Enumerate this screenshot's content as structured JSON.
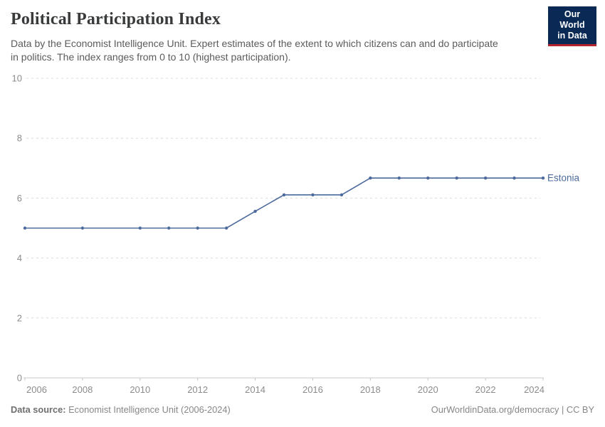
{
  "header": {
    "title": "Political Participation Index",
    "subtitle_lines": [
      "Data by the Economist Intelligence Unit. Expert estimates of the extent to which citizens can and do participate",
      "in politics. The index ranges from 0 to 10 (highest participation)."
    ],
    "logo": {
      "line1": "Our World",
      "line2": "in Data",
      "bg_color": "#0a2a55",
      "accent_color": "#b5232d"
    }
  },
  "chart_data": {
    "type": "line",
    "title": "Political Participation Index",
    "xlabel": "",
    "ylabel": "",
    "xlim": [
      2006,
      2024
    ],
    "ylim": [
      0,
      10
    ],
    "x_ticks": [
      2006,
      2008,
      2010,
      2012,
      2014,
      2016,
      2018,
      2020,
      2022,
      2024
    ],
    "y_ticks": [
      0,
      2,
      4,
      6,
      8,
      10
    ],
    "grid": "horizontal-dashed",
    "legend_position": "end-of-line",
    "series": [
      {
        "name": "Estonia",
        "color": "#4c6a9c",
        "points": [
          {
            "year": 2006,
            "value": 5.0
          },
          {
            "year": 2008,
            "value": 5.0
          },
          {
            "year": 2010,
            "value": 5.0
          },
          {
            "year": 2011,
            "value": 5.0
          },
          {
            "year": 2012,
            "value": 5.0
          },
          {
            "year": 2013,
            "value": 5.0
          },
          {
            "year": 2014,
            "value": 5.56
          },
          {
            "year": 2015,
            "value": 6.11
          },
          {
            "year": 2016,
            "value": 6.11
          },
          {
            "year": 2017,
            "value": 6.11
          },
          {
            "year": 2018,
            "value": 6.67
          },
          {
            "year": 2019,
            "value": 6.67
          },
          {
            "year": 2020,
            "value": 6.67
          },
          {
            "year": 2021,
            "value": 6.67
          },
          {
            "year": 2022,
            "value": 6.67
          },
          {
            "year": 2023,
            "value": 6.67
          },
          {
            "year": 2024,
            "value": 6.67
          }
        ]
      }
    ]
  },
  "footer": {
    "source_label": "Data source:",
    "source_name": " Economist Intelligence Unit (2006-2024)",
    "right_text": "OurWorldinData.org/democracy | CC BY"
  }
}
